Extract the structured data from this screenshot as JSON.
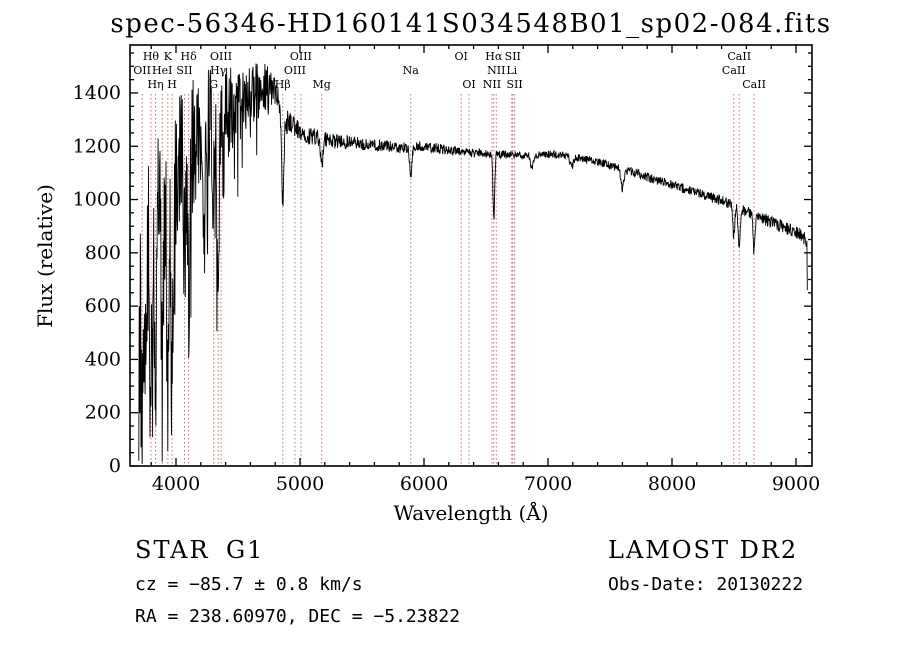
{
  "title": "spec-56346-HD160141S034548B01_sp02-084.fits",
  "chart_data": {
    "type": "line",
    "title": "spec-56346-HD160141S034548B01_sp02-084.fits",
    "xlabel": "Wavelength (Å)",
    "ylabel": "Flux (relative)",
    "xlim": [
      3629,
      9129
    ],
    "ylim": [
      0,
      1580
    ],
    "x_major_ticks": [
      4000,
      5000,
      6000,
      7000,
      8000,
      9000
    ],
    "x_minor_step": 200,
    "y_major_ticks": [
      0,
      200,
      400,
      600,
      800,
      1000,
      1200,
      1400
    ],
    "y_minor_step": 50,
    "grid": false,
    "legend": "none",
    "line_color": "#000000",
    "spectrum": {
      "wl_start": 3700,
      "wl_end": 9092,
      "sample_step": 3,
      "seed": 20130222,
      "edge_start_flux": 20,
      "edge_end_flux": 660,
      "continuum": [
        [
          3700,
          500
        ],
        [
          3750,
          850
        ],
        [
          3800,
          950
        ],
        [
          3850,
          1000
        ],
        [
          3900,
          1020
        ],
        [
          3950,
          1060
        ],
        [
          4000,
          1100
        ],
        [
          4100,
          1160
        ],
        [
          4200,
          1250
        ],
        [
          4300,
          1310
        ],
        [
          4400,
          1340
        ],
        [
          4500,
          1360
        ],
        [
          4600,
          1390
        ],
        [
          4700,
          1420
        ],
        [
          4760,
          1430
        ],
        [
          4820,
          1370
        ],
        [
          4870,
          1310
        ],
        [
          4950,
          1270
        ],
        [
          5000,
          1255
        ],
        [
          5100,
          1235
        ],
        [
          5250,
          1220
        ],
        [
          5400,
          1215
        ],
        [
          5600,
          1205
        ],
        [
          5800,
          1195
        ],
        [
          6000,
          1200
        ],
        [
          6200,
          1185
        ],
        [
          6400,
          1175
        ],
        [
          6600,
          1170
        ],
        [
          6800,
          1165
        ],
        [
          7000,
          1170
        ],
        [
          7150,
          1165
        ],
        [
          7300,
          1150
        ],
        [
          7450,
          1135
        ],
        [
          7600,
          1115
        ],
        [
          7800,
          1085
        ],
        [
          8000,
          1055
        ],
        [
          8200,
          1025
        ],
        [
          8400,
          995
        ],
        [
          8600,
          955
        ],
        [
          8800,
          915
        ],
        [
          9000,
          875
        ],
        [
          9092,
          845
        ]
      ],
      "noise_profile": [
        [
          3700,
          380
        ],
        [
          3800,
          360
        ],
        [
          3900,
          330
        ],
        [
          4000,
          300
        ],
        [
          4150,
          260
        ],
        [
          4300,
          220
        ],
        [
          4450,
          160
        ],
        [
          4600,
          120
        ],
        [
          4700,
          100
        ],
        [
          4800,
          70
        ],
        [
          4900,
          50
        ],
        [
          5000,
          38
        ],
        [
          5200,
          30
        ],
        [
          5500,
          24
        ],
        [
          6000,
          20
        ],
        [
          6500,
          16
        ],
        [
          7000,
          14
        ],
        [
          7500,
          16
        ],
        [
          8000,
          18
        ],
        [
          8500,
          20
        ],
        [
          9000,
          26
        ]
      ],
      "absorption_lines": [
        [
          3727,
          350,
          8
        ],
        [
          3750,
          500,
          10
        ],
        [
          3798,
          600,
          9
        ],
        [
          3835,
          620,
          9
        ],
        [
          3889,
          600,
          9
        ],
        [
          3934,
          680,
          9
        ],
        [
          3968,
          720,
          9
        ],
        [
          4068,
          300,
          8
        ],
        [
          4102,
          550,
          10
        ],
        [
          4227,
          350,
          8
        ],
        [
          4304,
          240,
          12
        ],
        [
          4340,
          470,
          10
        ],
        [
          4383,
          200,
          8
        ],
        [
          4861,
          330,
          9
        ],
        [
          5175,
          100,
          10
        ],
        [
          5893,
          110,
          9
        ],
        [
          6563,
          240,
          7
        ],
        [
          6870,
          50,
          10
        ],
        [
          7190,
          40,
          12
        ],
        [
          7600,
          70,
          12
        ],
        [
          8498,
          110,
          8
        ],
        [
          8542,
          160,
          8
        ],
        [
          8662,
          140,
          8
        ]
      ],
      "spike_noise": {
        "probability": 0.07,
        "wl_max": 4800,
        "amp_at_start": 650,
        "amp_at_end": 150
      }
    },
    "line_markers": {
      "color": "#c56b6b",
      "label_color": "#1a1a1a",
      "row_y": [
        60,
        74,
        88
      ],
      "markers": [
        {
          "label": "Hθ",
          "wl": 3798,
          "row": 1
        },
        {
          "label": "K",
          "wl": 3934,
          "row": 1
        },
        {
          "label": "Hδ",
          "wl": 4102,
          "row": 1
        },
        {
          "label": "OIII",
          "wl": 4363,
          "row": 1
        },
        {
          "label": "OIII",
          "wl": 5007,
          "row": 1
        },
        {
          "label": "OI",
          "wl": 6300,
          "row": 1
        },
        {
          "label": "Hα",
          "wl": 6563,
          "row": 1
        },
        {
          "label": "SII",
          "wl": 6716,
          "row": 1
        },
        {
          "label": "CaII",
          "wl": 8542,
          "row": 1
        },
        {
          "label": "OII",
          "wl": 3727,
          "row": 2
        },
        {
          "label": "HeI",
          "wl": 3889,
          "row": 2
        },
        {
          "label": "SII",
          "wl": 4068,
          "row": 2
        },
        {
          "label": "Hγ",
          "wl": 4340,
          "row": 2
        },
        {
          "label": "OIII",
          "wl": 4959,
          "row": 2
        },
        {
          "label": "Na",
          "wl": 5893,
          "row": 2
        },
        {
          "label": "NII",
          "wl": 6583,
          "row": 2
        },
        {
          "label": "Li",
          "wl": 6708,
          "row": 2
        },
        {
          "label": "CaII",
          "wl": 8498,
          "row": 2
        },
        {
          "label": "Hη",
          "wl": 3835,
          "row": 3
        },
        {
          "label": "H",
          "wl": 3968,
          "row": 3
        },
        {
          "label": "G",
          "wl": 4304,
          "row": 3
        },
        {
          "label": "Hβ",
          "wl": 4861,
          "row": 3
        },
        {
          "label": "Mg",
          "wl": 5175,
          "row": 3
        },
        {
          "label": "OI",
          "wl": 6363,
          "row": 3
        },
        {
          "label": "NII",
          "wl": 6548,
          "row": 3
        },
        {
          "label": "SII",
          "wl": 6731,
          "row": 3
        },
        {
          "label": "CaII",
          "wl": 8662,
          "row": 3
        }
      ]
    }
  },
  "annotations": {
    "class_label": "STAR",
    "subclass": "G1",
    "survey": "LAMOST DR2",
    "cz_line": "cz = −85.7 ± 0.8 km/s",
    "obs_date_line": "Obs-Date: 20130222",
    "radec_line": "RA = 238.60970, DEC =  −5.23822"
  }
}
